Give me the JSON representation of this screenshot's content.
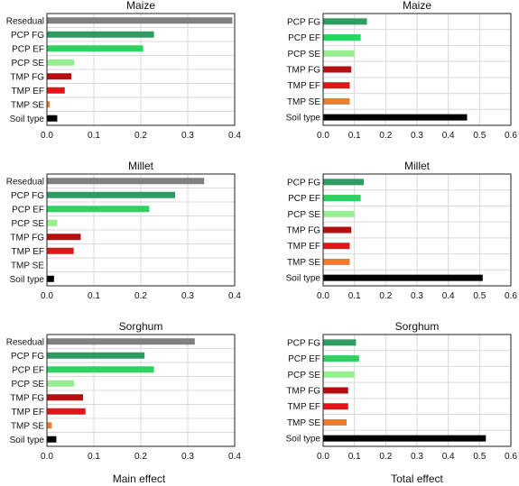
{
  "colors": {
    "Resedual": "#808080",
    "PCP FG": "#2e9b62",
    "PCP EF": "#2ed35f",
    "PCP SE": "#96ee90",
    "TMP FG": "#b50f12",
    "TMP EF": "#e0161b",
    "TMP SE": "#ed7d31",
    "Soil type": "#000000"
  },
  "labels": {
    "main_xlabel": "Main effect",
    "total_xlabel": "Total effect"
  },
  "chart_data": [
    {
      "type": "bar",
      "orientation": "horizontal",
      "title": "Maize",
      "categories": [
        "Resedual",
        "PCP FG",
        "PCP EF",
        "PCP SE",
        "TMP FG",
        "TMP EF",
        "TMP SE",
        "Soil type"
      ],
      "values": [
        0.395,
        0.228,
        0.205,
        0.058,
        0.052,
        0.038,
        0.006,
        0.022
      ],
      "xlim": [
        0,
        0.4
      ],
      "xticks": [
        "0.0",
        "0.1",
        "0.2",
        "0.3",
        "0.4"
      ],
      "grid": true
    },
    {
      "type": "bar",
      "orientation": "horizontal",
      "title": "Maize",
      "categories": [
        "PCP FG",
        "PCP EF",
        "PCP SE",
        "TMP FG",
        "TMP EF",
        "TMP SE",
        "Soil type"
      ],
      "values": [
        0.14,
        0.12,
        0.1,
        0.09,
        0.085,
        0.085,
        0.46
      ],
      "xlim": [
        0,
        0.6
      ],
      "xticks": [
        "0.0",
        "0.1",
        "0.2",
        "0.3",
        "0.4",
        "0.5",
        "0.6"
      ],
      "grid": true
    },
    {
      "type": "bar",
      "orientation": "horizontal",
      "title": "Millet",
      "categories": [
        "Resedual",
        "PCP FG",
        "PCP EF",
        "PCP SE",
        "TMP FG",
        "TMP EF",
        "TMP SE",
        "Soil type"
      ],
      "values": [
        0.335,
        0.273,
        0.218,
        0.022,
        0.072,
        0.057,
        0.0,
        0.015
      ],
      "xlim": [
        0,
        0.4
      ],
      "xticks": [
        "0.0",
        "0.1",
        "0.2",
        "0.3",
        "0.4"
      ],
      "grid": true
    },
    {
      "type": "bar",
      "orientation": "horizontal",
      "title": "Millet",
      "categories": [
        "PCP FG",
        "PCP EF",
        "PCP SE",
        "TMP FG",
        "TMP EF",
        "TMP SE",
        "Soil type"
      ],
      "values": [
        0.13,
        0.12,
        0.1,
        0.09,
        0.085,
        0.085,
        0.51
      ],
      "xlim": [
        0,
        0.6
      ],
      "xticks": [
        "0.0",
        "0.1",
        "0.2",
        "0.3",
        "0.4",
        "0.5",
        "0.6"
      ],
      "grid": true
    },
    {
      "type": "bar",
      "orientation": "horizontal",
      "title": "Sorghum",
      "categories": [
        "Resedual",
        "PCP FG",
        "PCP EF",
        "PCP SE",
        "TMP FG",
        "TMP EF",
        "TMP SE",
        "Soil type"
      ],
      "values": [
        0.315,
        0.208,
        0.228,
        0.058,
        0.077,
        0.082,
        0.01,
        0.02
      ],
      "xlim": [
        0,
        0.4
      ],
      "xticks": [
        "0.0",
        "0.1",
        "0.2",
        "0.3",
        "0.4"
      ],
      "grid": true
    },
    {
      "type": "bar",
      "orientation": "horizontal",
      "title": "Sorghum",
      "categories": [
        "PCP FG",
        "PCP EF",
        "PCP SE",
        "TMP FG",
        "TMP EF",
        "TMP SE",
        "Soil type"
      ],
      "values": [
        0.105,
        0.115,
        0.1,
        0.08,
        0.08,
        0.075,
        0.52
      ],
      "xlim": [
        0,
        0.6
      ],
      "xticks": [
        "0.0",
        "0.1",
        "0.2",
        "0.3",
        "0.4",
        "0.5",
        "0.6"
      ],
      "grid": true
    }
  ]
}
